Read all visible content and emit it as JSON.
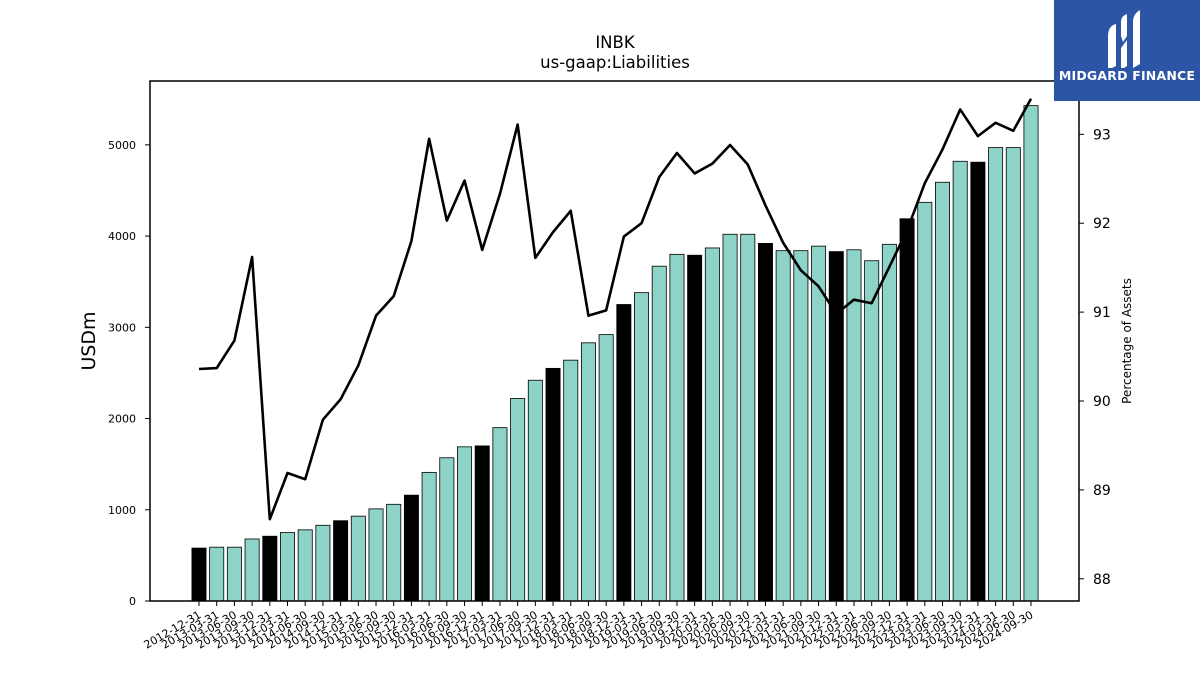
{
  "chart_data": {
    "type": "bar",
    "title": "INBK",
    "subtitle": "us-gaap:Liabilities",
    "ylabel": "USDm",
    "y2label": "Percentage of Assets",
    "ylim": [
      0,
      5700
    ],
    "y2lim": [
      87.75,
      93.6
    ],
    "yticks": [
      0,
      1000,
      2000,
      3000,
      4000,
      5000
    ],
    "y2ticks": [
      88,
      89,
      90,
      91,
      92,
      93
    ],
    "grid": false,
    "bar_color": "#8dd3c7",
    "highlight_color": "#000000",
    "line_color": "#000000",
    "categories": [
      "2012-12-31",
      "2013-03-31",
      "2013-06-30",
      "2013-09-30",
      "2013-12-31",
      "2014-03-31",
      "2014-06-30",
      "2014-09-30",
      "2014-12-31",
      "2015-03-31",
      "2015-06-30",
      "2015-09-30",
      "2015-12-31",
      "2016-03-31",
      "2016-06-30",
      "2016-09-30",
      "2016-12-31",
      "2017-03-31",
      "2017-06-30",
      "2017-09-30",
      "2017-12-31",
      "2018-03-31",
      "2018-06-30",
      "2018-09-30",
      "2018-12-31",
      "2019-03-31",
      "2019-06-30",
      "2019-09-30",
      "2019-12-31",
      "2020-03-31",
      "2020-06-30",
      "2020-09-30",
      "2020-12-31",
      "2021-03-31",
      "2021-06-30",
      "2021-09-30",
      "2021-12-31",
      "2022-03-31",
      "2022-06-30",
      "2022-09-30",
      "2022-12-31",
      "2023-03-31",
      "2023-06-30",
      "2023-09-30",
      "2023-12-31",
      "2024-03-31",
      "2024-06-30",
      "2024-09-30"
    ],
    "series": [
      {
        "kind": "bar",
        "values": [
          580,
          590,
          590,
          680,
          710,
          750,
          780,
          830,
          880,
          930,
          1010,
          1060,
          1160,
          1410,
          1570,
          1690,
          1700,
          1900,
          2220,
          2420,
          2550,
          2640,
          2830,
          2920,
          3250,
          3380,
          3670,
          3800,
          3790,
          3870,
          4020,
          4020,
          3920,
          3840,
          3840,
          3890,
          3830,
          3850,
          3730,
          3910,
          4190,
          4370,
          4590,
          4820,
          4810,
          4970,
          4970,
          5430
        ],
        "highlight": [
          true,
          false,
          false,
          false,
          true,
          false,
          false,
          false,
          true,
          false,
          false,
          false,
          true,
          false,
          false,
          false,
          true,
          false,
          false,
          false,
          true,
          false,
          false,
          false,
          true,
          false,
          false,
          false,
          true,
          false,
          false,
          false,
          true,
          false,
          false,
          false,
          true,
          false,
          false,
          false,
          true,
          false,
          false,
          false,
          true,
          false,
          false,
          false
        ]
      },
      {
        "kind": "line",
        "axis": "y2",
        "values": [
          90.36,
          90.37,
          90.68,
          91.62,
          88.67,
          89.19,
          89.12,
          89.79,
          90.02,
          90.4,
          90.96,
          91.18,
          91.8,
          92.95,
          92.03,
          92.48,
          91.7,
          92.33,
          93.11,
          91.61,
          91.9,
          92.14,
          90.96,
          91.02,
          91.85,
          92.0,
          92.52,
          92.79,
          92.56,
          92.67,
          92.88,
          92.66,
          92.2,
          91.78,
          91.47,
          91.29,
          90.98,
          91.14,
          91.1,
          91.51,
          91.92,
          92.45,
          92.83,
          93.28,
          92.98,
          93.13,
          93.04,
          93.4
        ]
      }
    ]
  },
  "logo": {
    "text": "MIDGARD FINANCE"
  }
}
